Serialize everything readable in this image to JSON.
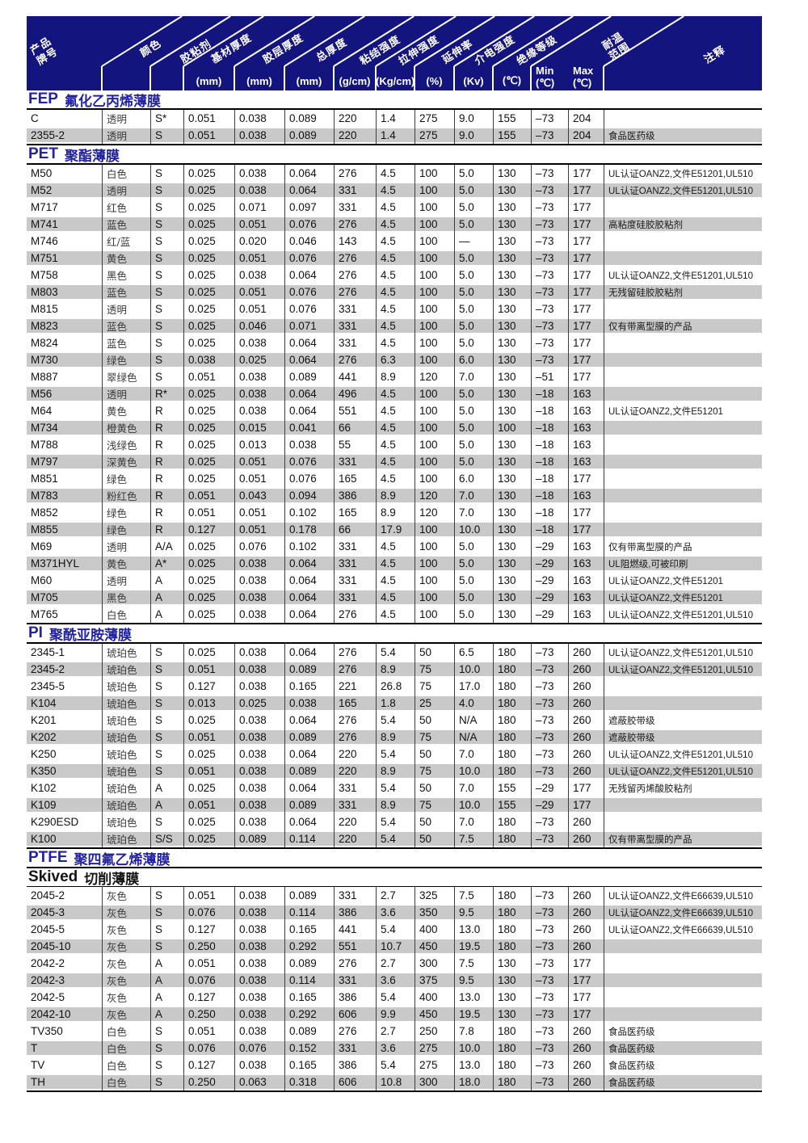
{
  "header": {
    "diagonal_labels": [
      "产品\n牌号",
      "颜色",
      "胶粘剂",
      "基材厚度",
      "胶层厚度",
      "总厚度",
      "粘结强度",
      "拉伸强度",
      "延伸率",
      "介电强度",
      "绝缘等级",
      "耐温\n范围",
      "注释"
    ],
    "units": [
      "(mm)",
      "(mm)",
      "(mm)",
      "(g/cm)",
      "(Kg/cm)",
      "(%)",
      "(Kv)",
      "(℃)"
    ],
    "min_label": "Min",
    "min_unit": "(℃)",
    "max_label": "Max",
    "max_unit": "(℃)"
  },
  "colors": {
    "header_bg": "#14147e",
    "title_blue": "#2323a0",
    "stripe_gray": "#c9c9c9",
    "divider": "#3c3c3c"
  },
  "sections": [
    {
      "id": "fep",
      "title_prefix": "FEP",
      "title_cn": "氟化乙丙烯薄膜",
      "rows": [
        [
          "C",
          "透明",
          "S*",
          "0.051",
          "0.038",
          "0.089",
          "220",
          "1.4",
          "275",
          "9.0",
          "155",
          "–73",
          "204",
          ""
        ],
        [
          "2355-2",
          "透明",
          "S",
          "0.051",
          "0.038",
          "0.089",
          "220",
          "1.4",
          "275",
          "9.0",
          "155",
          "–73",
          "204",
          "食品医药级"
        ]
      ]
    },
    {
      "id": "pet",
      "title_prefix": "PET",
      "title_cn": "聚酯薄膜",
      "rows": [
        [
          "M50",
          "白色",
          "S",
          "0.025",
          "0.038",
          "0.064",
          "276",
          "4.5",
          "100",
          "5.0",
          "130",
          "–73",
          "177",
          "UL认证OANZ2,文件E51201,UL510"
        ],
        [
          "M52",
          "透明",
          "S",
          "0.025",
          "0.038",
          "0.064",
          "331",
          "4.5",
          "100",
          "5.0",
          "130",
          "–73",
          "177",
          "UL认证OANZ2,文件E51201,UL510"
        ],
        [
          "M717",
          "红色",
          "S",
          "0.025",
          "0.071",
          "0.097",
          "331",
          "4.5",
          "100",
          "5.0",
          "130",
          "–73",
          "177",
          ""
        ],
        [
          "M741",
          "蓝色",
          "S",
          "0.025",
          "0.051",
          "0.076",
          "276",
          "4.5",
          "100",
          "5.0",
          "130",
          "–73",
          "177",
          "高粘度硅胶胶粘剂"
        ],
        [
          "M746",
          "红/蓝",
          "S",
          "0.025",
          "0.020",
          "0.046",
          "143",
          "4.5",
          "100",
          "—",
          "130",
          "–73",
          "177",
          ""
        ],
        [
          "M751",
          "黄色",
          "S",
          "0.025",
          "0.051",
          "0.076",
          "276",
          "4.5",
          "100",
          "5.0",
          "130",
          "–73",
          "177",
          ""
        ],
        [
          "M758",
          "黑色",
          "S",
          "0.025",
          "0.038",
          "0.064",
          "276",
          "4.5",
          "100",
          "5.0",
          "130",
          "–73",
          "177",
          "UL认证OANZ2,文件E51201,UL510"
        ],
        [
          "M803",
          "蓝色",
          "S",
          "0.025",
          "0.051",
          "0.076",
          "276",
          "4.5",
          "100",
          "5.0",
          "130",
          "–73",
          "177",
          "无残留硅胶胶粘剂"
        ],
        [
          "M815",
          "透明",
          "S",
          "0.025",
          "0.051",
          "0.076",
          "331",
          "4.5",
          "100",
          "5.0",
          "130",
          "–73",
          "177",
          ""
        ],
        [
          "M823",
          "蓝色",
          "S",
          "0.025",
          "0.046",
          "0.071",
          "331",
          "4.5",
          "100",
          "5.0",
          "130",
          "–73",
          "177",
          "仅有带离型膜的产品"
        ],
        [
          "M824",
          "蓝色",
          "S",
          "0.025",
          "0.038",
          "0.064",
          "331",
          "4.5",
          "100",
          "5.0",
          "130",
          "–73",
          "177",
          ""
        ],
        [
          "M730",
          "绿色",
          "S",
          "0.038",
          "0.025",
          "0.064",
          "276",
          "6.3",
          "100",
          "6.0",
          "130",
          "–73",
          "177",
          ""
        ],
        [
          "M887",
          "翠绿色",
          "S",
          "0.051",
          "0.038",
          "0.089",
          "441",
          "8.9",
          "120",
          "7.0",
          "130",
          "–51",
          "177",
          ""
        ],
        [
          "M56",
          "透明",
          "R*",
          "0.025",
          "0.038",
          "0.064",
          "496",
          "4.5",
          "100",
          "5.0",
          "130",
          "–18",
          "163",
          ""
        ],
        [
          "M64",
          "黄色",
          "R",
          "0.025",
          "0.038",
          "0.064",
          "551",
          "4.5",
          "100",
          "5.0",
          "130",
          "–18",
          "163",
          "UL认证OANZ2,文件E51201"
        ],
        [
          "M734",
          "橙黄色",
          "R",
          "0.025",
          "0.015",
          "0.041",
          "66",
          "4.5",
          "100",
          "5.0",
          "100",
          "–18",
          "163",
          ""
        ],
        [
          "M788",
          "浅绿色",
          "R",
          "0.025",
          "0.013",
          "0.038",
          "55",
          "4.5",
          "100",
          "5.0",
          "130",
          "–18",
          "163",
          ""
        ],
        [
          "M797",
          "深黄色",
          "R",
          "0.025",
          "0.051",
          "0.076",
          "331",
          "4.5",
          "100",
          "5.0",
          "130",
          "–18",
          "163",
          ""
        ],
        [
          "M851",
          "绿色",
          "R",
          "0.025",
          "0.051",
          "0.076",
          "165",
          "4.5",
          "100",
          "6.0",
          "130",
          "–18",
          "177",
          ""
        ],
        [
          "M783",
          "粉红色",
          "R",
          "0.051",
          "0.043",
          "0.094",
          "386",
          "8.9",
          "120",
          "7.0",
          "130",
          "–18",
          "163",
          ""
        ],
        [
          "M852",
          "绿色",
          "R",
          "0.051",
          "0.051",
          "0.102",
          "165",
          "8.9",
          "120",
          "7.0",
          "130",
          "–18",
          "177",
          ""
        ],
        [
          "M855",
          "绿色",
          "R",
          "0.127",
          "0.051",
          "0.178",
          "66",
          "17.9",
          "100",
          "10.0",
          "130",
          "–18",
          "177",
          ""
        ],
        [
          "M69",
          "透明",
          "A/A",
          "0.025",
          "0.076",
          "0.102",
          "331",
          "4.5",
          "100",
          "5.0",
          "130",
          "–29",
          "163",
          "仅有带离型膜的产品"
        ],
        [
          "M371HYL",
          "黄色",
          "A*",
          "0.025",
          "0.038",
          "0.064",
          "331",
          "4.5",
          "100",
          "5.0",
          "130",
          "–29",
          "163",
          "UL阻燃级,可被印刷"
        ],
        [
          "M60",
          "透明",
          "A",
          "0.025",
          "0.038",
          "0.064",
          "331",
          "4.5",
          "100",
          "5.0",
          "130",
          "–29",
          "163",
          "UL认证OANZ2,文件E51201"
        ],
        [
          "M705",
          "黑色",
          "A",
          "0.025",
          "0.038",
          "0.064",
          "331",
          "4.5",
          "100",
          "5.0",
          "130",
          "–29",
          "163",
          "UL认证OANZ2,文件E51201"
        ],
        [
          "M765",
          "白色",
          "A",
          "0.025",
          "0.038",
          "0.064",
          "276",
          "4.5",
          "100",
          "5.0",
          "130",
          "–29",
          "163",
          "UL认证OANZ2,文件E51201,UL510"
        ]
      ]
    },
    {
      "id": "pi",
      "title_prefix": "PI",
      "title_cn": "聚酰亚胺薄膜",
      "rows": [
        [
          "2345-1",
          "琥珀色",
          "S",
          "0.025",
          "0.038",
          "0.064",
          "276",
          "5.4",
          "50",
          "6.5",
          "180",
          "–73",
          "260",
          "UL认证OANZ2,文件E51201,UL510"
        ],
        [
          "2345-2",
          "琥珀色",
          "S",
          "0.051",
          "0.038",
          "0.089",
          "276",
          "8.9",
          "75",
          "10.0",
          "180",
          "–73",
          "260",
          "UL认证OANZ2,文件E51201,UL510"
        ],
        [
          "2345-5",
          "琥珀色",
          "S",
          "0.127",
          "0.038",
          "0.165",
          "221",
          "26.8",
          "75",
          "17.0",
          "180",
          "–73",
          "260",
          ""
        ],
        [
          "K104",
          "琥珀色",
          "S",
          "0.013",
          "0.025",
          "0.038",
          "165",
          "1.8",
          "25",
          "4.0",
          "180",
          "–73",
          "260",
          ""
        ],
        [
          "K201",
          "琥珀色",
          "S",
          "0.025",
          "0.038",
          "0.064",
          "276",
          "5.4",
          "50",
          "N/A",
          "180",
          "–73",
          "260",
          "遮蔽胶带级"
        ],
        [
          "K202",
          "琥珀色",
          "S",
          "0.051",
          "0.038",
          "0.089",
          "276",
          "8.9",
          "75",
          "N/A",
          "180",
          "–73",
          "260",
          "遮蔽胶带级"
        ],
        [
          "K250",
          "琥珀色",
          "S",
          "0.025",
          "0.038",
          "0.064",
          "220",
          "5.4",
          "50",
          "7.0",
          "180",
          "–73",
          "260",
          "UL认证OANZ2,文件E51201,UL510"
        ],
        [
          "K350",
          "琥珀色",
          "S",
          "0.051",
          "0.038",
          "0.089",
          "220",
          "8.9",
          "75",
          "10.0",
          "180",
          "–73",
          "260",
          "UL认证OANZ2,文件E51201,UL510"
        ],
        [
          "K102",
          "琥珀色",
          "A",
          "0.025",
          "0.038",
          "0.064",
          "331",
          "5.4",
          "50",
          "7.0",
          "155",
          "–29",
          "177",
          "无残留丙烯酸胶粘剂"
        ],
        [
          "K109",
          "琥珀色",
          "A",
          "0.051",
          "0.038",
          "0.089",
          "331",
          "8.9",
          "75",
          "10.0",
          "155",
          "–29",
          "177",
          ""
        ],
        [
          "K290ESD",
          "琥珀色",
          "S",
          "0.025",
          "0.038",
          "0.064",
          "220",
          "5.4",
          "50",
          "7.0",
          "180",
          "–73",
          "260",
          ""
        ],
        [
          "K100",
          "琥珀色",
          "S/S",
          "0.025",
          "0.089",
          "0.114",
          "220",
          "5.4",
          "50",
          "7.5",
          "180",
          "–73",
          "260",
          "仅有带离型膜的产品"
        ]
      ]
    },
    {
      "id": "ptfe",
      "title_prefix": "PTFE",
      "title_cn": "聚四氟乙烯薄膜",
      "subtitle_prefix": "Skived",
      "subtitle_cn": "切削薄膜",
      "rows": [
        [
          "2045-2",
          "灰色",
          "S",
          "0.051",
          "0.038",
          "0.089",
          "331",
          "2.7",
          "325",
          "7.5",
          "180",
          "–73",
          "260",
          "UL认证OANZ2,文件E66639,UL510"
        ],
        [
          "2045-3",
          "灰色",
          "S",
          "0.076",
          "0.038",
          "0.114",
          "386",
          "3.6",
          "350",
          "9.5",
          "180",
          "–73",
          "260",
          "UL认证OANZ2,文件E66639,UL510"
        ],
        [
          "2045-5",
          "灰色",
          "S",
          "0.127",
          "0.038",
          "0.165",
          "441",
          "5.4",
          "400",
          "13.0",
          "180",
          "–73",
          "260",
          "UL认证OANZ2,文件E66639,UL510"
        ],
        [
          "2045-10",
          "灰色",
          "S",
          "0.250",
          "0.038",
          "0.292",
          "551",
          "10.7",
          "450",
          "19.5",
          "180",
          "–73",
          "260",
          ""
        ],
        [
          "2042-2",
          "灰色",
          "A",
          "0.051",
          "0.038",
          "0.089",
          "276",
          "2.7",
          "300",
          "7.5",
          "130",
          "–73",
          "177",
          ""
        ],
        [
          "2042-3",
          "灰色",
          "A",
          "0.076",
          "0.038",
          "0.114",
          "331",
          "3.6",
          "375",
          "9.5",
          "130",
          "–73",
          "177",
          ""
        ],
        [
          "2042-5",
          "灰色",
          "A",
          "0.127",
          "0.038",
          "0.165",
          "386",
          "5.4",
          "400",
          "13.0",
          "130",
          "–73",
          "177",
          ""
        ],
        [
          "2042-10",
          "灰色",
          "A",
          "0.250",
          "0.038",
          "0.292",
          "606",
          "9.9",
          "450",
          "19.5",
          "130",
          "–73",
          "177",
          ""
        ],
        [
          "TV350",
          "白色",
          "S",
          "0.051",
          "0.038",
          "0.089",
          "276",
          "2.7",
          "250",
          "7.8",
          "180",
          "–73",
          "260",
          "食品医药级"
        ],
        [
          "T",
          "白色",
          "S",
          "0.076",
          "0.076",
          "0.152",
          "331",
          "3.6",
          "275",
          "10.0",
          "180",
          "–73",
          "260",
          "食品医药级"
        ],
        [
          "TV",
          "白色",
          "S",
          "0.127",
          "0.038",
          "0.165",
          "386",
          "5.4",
          "275",
          "13.0",
          "180",
          "–73",
          "260",
          "食品医药级"
        ],
        [
          "TH",
          "白色",
          "S",
          "0.250",
          "0.063",
          "0.318",
          "606",
          "10.8",
          "300",
          "18.0",
          "180",
          "–73",
          "260",
          "食品医药级"
        ]
      ]
    }
  ]
}
